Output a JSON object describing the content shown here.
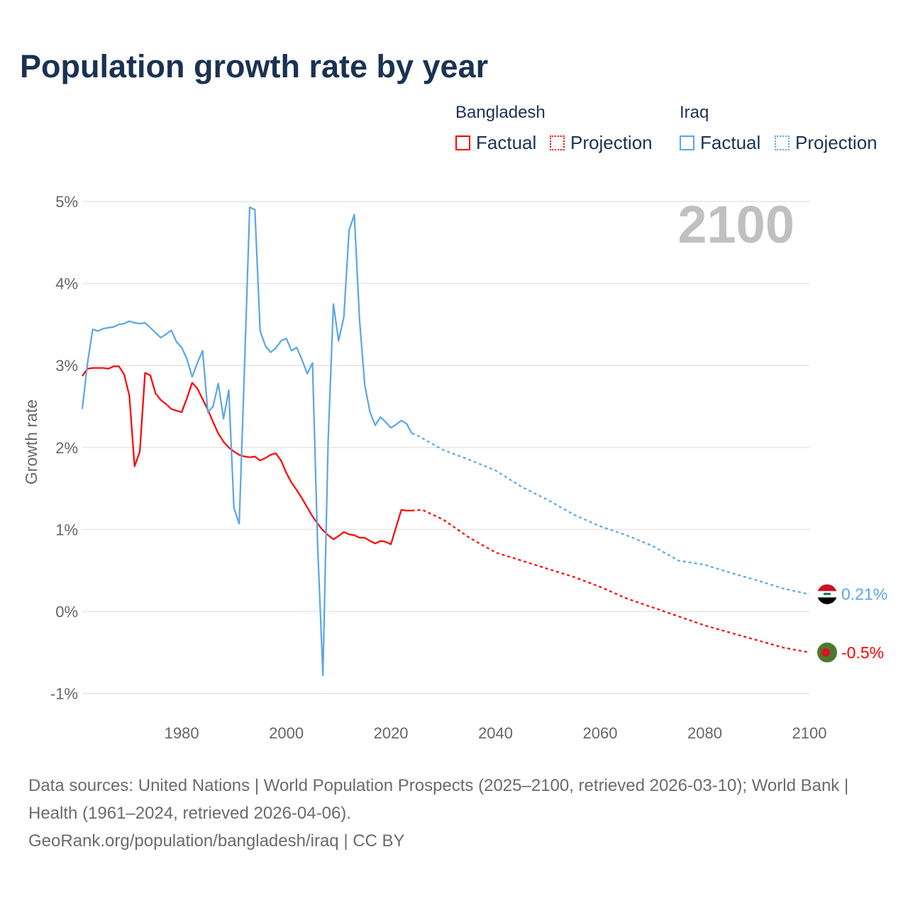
{
  "title": "Population growth rate by year",
  "legend": {
    "groups": [
      {
        "name": "Bangladesh",
        "factual": "Factual",
        "projection": "Projection",
        "color": "#ff0000"
      },
      {
        "name": "Iraq",
        "factual": "Factual",
        "projection": "Projection",
        "color": "#5aa5ea"
      }
    ]
  },
  "chart_data": {
    "type": "line",
    "title": "Population growth rate by year",
    "ylabel": "Growth rate",
    "xlabel": "",
    "current_year_label": "2100",
    "xlim": [
      1961,
      2100
    ],
    "ylim": [
      -1.15,
      5.1
    ],
    "x_ticks": [
      1980,
      2000,
      2020,
      2040,
      2060,
      2080,
      2100
    ],
    "x_tick_labels": [
      "1980",
      "2000",
      "2020",
      "2040",
      "2060",
      "2080",
      "2100"
    ],
    "y_ticks": [
      -1,
      0,
      1,
      2,
      3,
      4,
      5
    ],
    "y_tick_labels": [
      "-1%",
      "0%",
      "1%",
      "2%",
      "3%",
      "4%",
      "5%"
    ],
    "grid": true,
    "legend_position": "top-right",
    "series": [
      {
        "name": "Bangladesh",
        "kind": "factual",
        "color": "#ff0000",
        "end_label": "-0.5%",
        "factual_x": [
          1961,
          1962,
          1963,
          1964,
          1965,
          1966,
          1967,
          1968,
          1969,
          1970,
          1971,
          1972,
          1973,
          1974,
          1975,
          1976,
          1977,
          1978,
          1979,
          1980,
          1981,
          1982,
          1983,
          1984,
          1985,
          1986,
          1987,
          1988,
          1989,
          1990,
          1991,
          1992,
          1993,
          1994,
          1995,
          1996,
          1997,
          1998,
          1999,
          2000,
          2001,
          2002,
          2003,
          2004,
          2005,
          2006,
          2007,
          2008,
          2009,
          2010,
          2011,
          2012,
          2013,
          2014,
          2015,
          2016,
          2017,
          2018,
          2019,
          2020,
          2021,
          2022,
          2023,
          2024
        ],
        "factual_y": [
          2.87,
          2.96,
          2.97,
          2.97,
          2.97,
          2.96,
          2.99,
          2.99,
          2.89,
          2.63,
          1.77,
          1.95,
          2.91,
          2.88,
          2.66,
          2.58,
          2.53,
          2.47,
          2.45,
          2.43,
          2.6,
          2.79,
          2.72,
          2.59,
          2.46,
          2.31,
          2.17,
          2.07,
          2.0,
          1.95,
          1.91,
          1.89,
          1.88,
          1.89,
          1.84,
          1.87,
          1.91,
          1.93,
          1.84,
          1.69,
          1.57,
          1.48,
          1.38,
          1.27,
          1.16,
          1.07,
          0.99,
          0.93,
          0.88,
          0.92,
          0.97,
          0.94,
          0.93,
          0.9,
          0.9,
          0.86,
          0.83,
          0.86,
          0.85,
          0.82,
          1.03,
          1.24,
          1.23,
          1.23
        ],
        "projection_x": [
          2024,
          2026,
          2030,
          2035,
          2040,
          2045,
          2050,
          2055,
          2060,
          2065,
          2070,
          2075,
          2080,
          2085,
          2090,
          2095,
          2100
        ],
        "projection_y": [
          1.23,
          1.24,
          1.12,
          0.9,
          0.72,
          0.62,
          0.52,
          0.42,
          0.3,
          0.16,
          0.05,
          -0.06,
          -0.17,
          -0.26,
          -0.35,
          -0.44,
          -0.5
        ]
      },
      {
        "name": "Iraq",
        "kind": "factual",
        "color": "#5aa5ea",
        "end_label": "0.21%",
        "factual_x": [
          1961,
          1962,
          1963,
          1964,
          1965,
          1966,
          1967,
          1968,
          1969,
          1970,
          1971,
          1972,
          1973,
          1974,
          1975,
          1976,
          1977,
          1978,
          1979,
          1980,
          1981,
          1982,
          1983,
          1984,
          1985,
          1986,
          1987,
          1988,
          1989,
          1990,
          1991,
          1992,
          1993,
          1994,
          1995,
          1996,
          1997,
          1998,
          1999,
          2000,
          2001,
          2002,
          2003,
          2004,
          2005,
          2006,
          2007,
          2008,
          2009,
          2010,
          2011,
          2012,
          2013,
          2014,
          2015,
          2016,
          2017,
          2018,
          2019,
          2020,
          2021,
          2022,
          2023,
          2024
        ],
        "factual_y": [
          2.47,
          3.03,
          3.44,
          3.42,
          3.45,
          3.46,
          3.47,
          3.5,
          3.51,
          3.54,
          3.52,
          3.51,
          3.52,
          3.46,
          3.4,
          3.34,
          3.38,
          3.43,
          3.29,
          3.22,
          3.08,
          2.86,
          3.03,
          3.18,
          2.43,
          2.5,
          2.78,
          2.35,
          2.7,
          1.26,
          1.07,
          2.96,
          4.93,
          4.9,
          3.42,
          3.24,
          3.16,
          3.21,
          3.3,
          3.33,
          3.18,
          3.22,
          3.07,
          2.9,
          3.03,
          0.8,
          -0.78,
          2.09,
          3.75,
          3.3,
          3.59,
          4.65,
          4.84,
          3.56,
          2.76,
          2.43,
          2.27,
          2.37,
          2.31,
          2.24,
          2.28,
          2.33,
          2.29,
          2.17
        ],
        "projection_x": [
          2024,
          2025,
          2030,
          2035,
          2040,
          2045,
          2050,
          2055,
          2060,
          2065,
          2070,
          2075,
          2080,
          2085,
          2090,
          2095,
          2100
        ],
        "projection_y": [
          2.17,
          2.15,
          1.97,
          1.85,
          1.72,
          1.52,
          1.36,
          1.18,
          1.04,
          0.93,
          0.8,
          0.62,
          0.57,
          0.47,
          0.38,
          0.28,
          0.21
        ]
      }
    ]
  },
  "footer": {
    "sources": "Data sources: United Nations | World Population Prospects (2025–2100, retrieved 2026-03-10); World Bank | Health (1961–2024, retrieved 2026-04-06).",
    "link": "GeoRank.org/population/bangladesh/iraq | CC BY"
  }
}
